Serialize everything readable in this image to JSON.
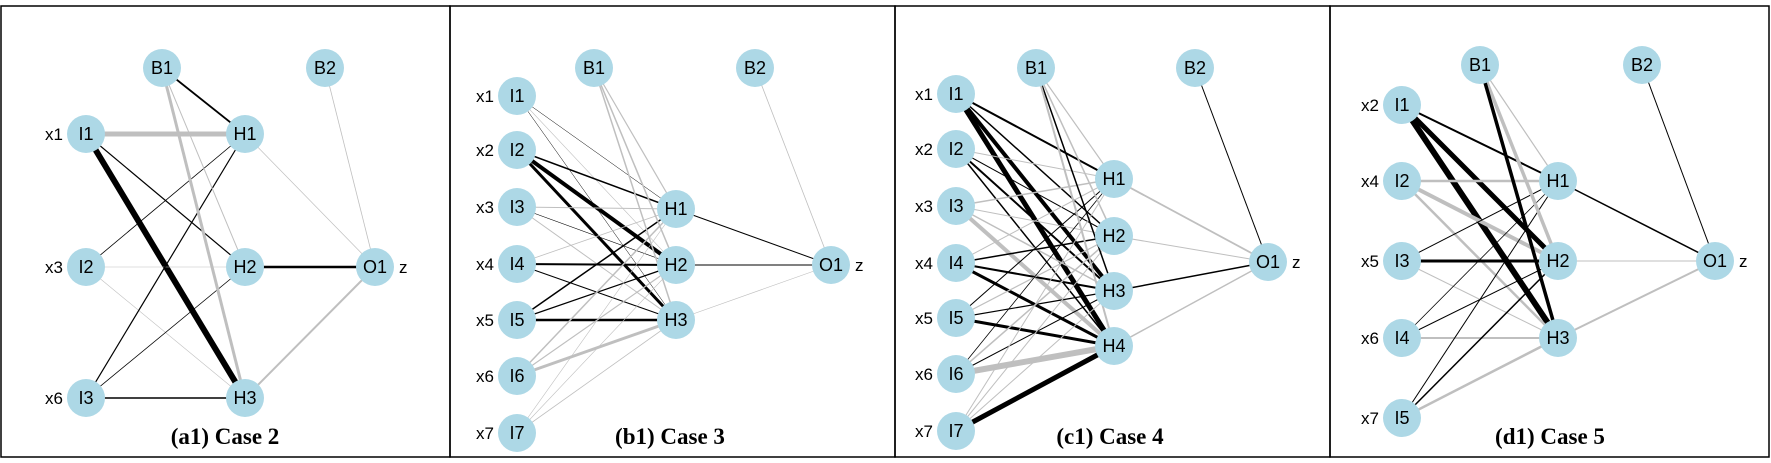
{
  "colors": {
    "node_fill": "#add8e6",
    "positive_weight": "#000000",
    "negative_weight": "#bfbfbf",
    "frame": "#000000"
  },
  "panels": [
    {
      "caption": "(a1) Case 2",
      "output_label": "z",
      "inputs": [
        {
          "id": "I1",
          "label": "x1"
        },
        {
          "id": "I2",
          "label": "x3"
        },
        {
          "id": "I3",
          "label": "x6"
        }
      ],
      "hidden": [
        "H1",
        "H2",
        "H3"
      ],
      "biases": [
        "B1",
        "B2"
      ],
      "output": "O1",
      "edges": [
        {
          "from": "I1",
          "to": "H1",
          "sign": "negative",
          "weight": 5
        },
        {
          "from": "I1",
          "to": "H2",
          "sign": "positive",
          "weight": 1.2
        },
        {
          "from": "I1",
          "to": "H3",
          "sign": "positive",
          "weight": 6
        },
        {
          "from": "I2",
          "to": "H1",
          "sign": "positive",
          "weight": 0.8
        },
        {
          "from": "I2",
          "to": "H2",
          "sign": "negative",
          "weight": 0.6
        },
        {
          "from": "I2",
          "to": "H3",
          "sign": "negative",
          "weight": 0.6
        },
        {
          "from": "I3",
          "to": "H1",
          "sign": "positive",
          "weight": 1.2
        },
        {
          "from": "I3",
          "to": "H2",
          "sign": "positive",
          "weight": 0.8
        },
        {
          "from": "I3",
          "to": "H3",
          "sign": "positive",
          "weight": 1.5
        },
        {
          "from": "B1",
          "to": "H1",
          "sign": "positive",
          "weight": 1.8
        },
        {
          "from": "B1",
          "to": "H2",
          "sign": "negative",
          "weight": 1
        },
        {
          "from": "B1",
          "to": "H3",
          "sign": "negative",
          "weight": 3
        },
        {
          "from": "H1",
          "to": "O1",
          "sign": "negative",
          "weight": 0.7
        },
        {
          "from": "H2",
          "to": "O1",
          "sign": "positive",
          "weight": 2.5
        },
        {
          "from": "H3",
          "to": "O1",
          "sign": "negative",
          "weight": 2
        },
        {
          "from": "B2",
          "to": "O1",
          "sign": "negative",
          "weight": 0.8
        }
      ]
    },
    {
      "caption": "(b1) Case 3",
      "output_label": "z",
      "inputs": [
        {
          "id": "I1",
          "label": "x1"
        },
        {
          "id": "I2",
          "label": "x2"
        },
        {
          "id": "I3",
          "label": "x3"
        },
        {
          "id": "I4",
          "label": "x4"
        },
        {
          "id": "I5",
          "label": "x5"
        },
        {
          "id": "I6",
          "label": "x6"
        },
        {
          "id": "I7",
          "label": "x7"
        }
      ],
      "hidden": [
        "H1",
        "H2",
        "H3"
      ],
      "biases": [
        "B1",
        "B2"
      ],
      "output": "O1",
      "edges": [
        {
          "from": "I1",
          "to": "H1",
          "sign": "positive",
          "weight": 0.5
        },
        {
          "from": "I1",
          "to": "H2",
          "sign": "negative",
          "weight": 0.6
        },
        {
          "from": "I1",
          "to": "H3",
          "sign": "positive",
          "weight": 0.5
        },
        {
          "from": "I2",
          "to": "H1",
          "sign": "positive",
          "weight": 1.5
        },
        {
          "from": "I2",
          "to": "H2",
          "sign": "positive",
          "weight": 4
        },
        {
          "from": "I2",
          "to": "H3",
          "sign": "positive",
          "weight": 3
        },
        {
          "from": "I3",
          "to": "H1",
          "sign": "negative",
          "weight": 1
        },
        {
          "from": "I3",
          "to": "H2",
          "sign": "positive",
          "weight": 0.6
        },
        {
          "from": "I3",
          "to": "H3",
          "sign": "negative",
          "weight": 1
        },
        {
          "from": "I4",
          "to": "H1",
          "sign": "negative",
          "weight": 0.8
        },
        {
          "from": "I4",
          "to": "H2",
          "sign": "positive",
          "weight": 2
        },
        {
          "from": "I4",
          "to": "H3",
          "sign": "positive",
          "weight": 1
        },
        {
          "from": "I5",
          "to": "H1",
          "sign": "positive",
          "weight": 1.5
        },
        {
          "from": "I5",
          "to": "H2",
          "sign": "positive",
          "weight": 1.2
        },
        {
          "from": "I5",
          "to": "H3",
          "sign": "positive",
          "weight": 2.5
        },
        {
          "from": "I6",
          "to": "H1",
          "sign": "negative",
          "weight": 1.5
        },
        {
          "from": "I6",
          "to": "H2",
          "sign": "negative",
          "weight": 1.2
        },
        {
          "from": "I6",
          "to": "H3",
          "sign": "negative",
          "weight": 3
        },
        {
          "from": "I7",
          "to": "H1",
          "sign": "negative",
          "weight": 0.6
        },
        {
          "from": "I7",
          "to": "H2",
          "sign": "negative",
          "weight": 0.6
        },
        {
          "from": "I7",
          "to": "H3",
          "sign": "negative",
          "weight": 0.8
        },
        {
          "from": "B1",
          "to": "H1",
          "sign": "negative",
          "weight": 1.2
        },
        {
          "from": "B1",
          "to": "H2",
          "sign": "negative",
          "weight": 1.5
        },
        {
          "from": "B1",
          "to": "H3",
          "sign": "negative",
          "weight": 1.5
        },
        {
          "from": "H1",
          "to": "O1",
          "sign": "positive",
          "weight": 1
        },
        {
          "from": "H2",
          "to": "O1",
          "sign": "positive",
          "weight": 1
        },
        {
          "from": "H3",
          "to": "O1",
          "sign": "negative",
          "weight": 0.6
        },
        {
          "from": "B2",
          "to": "O1",
          "sign": "negative",
          "weight": 0.8
        }
      ]
    },
    {
      "caption": "(c1) Case 4",
      "output_label": "z",
      "inputs": [
        {
          "id": "I1",
          "label": "x1"
        },
        {
          "id": "I2",
          "label": "x2"
        },
        {
          "id": "I3",
          "label": "x3"
        },
        {
          "id": "I4",
          "label": "x4"
        },
        {
          "id": "I5",
          "label": "x5"
        },
        {
          "id": "I6",
          "label": "x6"
        },
        {
          "id": "I7",
          "label": "x7"
        }
      ],
      "hidden": [
        "H1",
        "H2",
        "H3",
        "H4"
      ],
      "biases": [
        "B1",
        "B2"
      ],
      "output": "O1",
      "edges": [
        {
          "from": "I1",
          "to": "H1",
          "sign": "positive",
          "weight": 2
        },
        {
          "from": "I1",
          "to": "H2",
          "sign": "positive",
          "weight": 1.5
        },
        {
          "from": "I1",
          "to": "H3",
          "sign": "positive",
          "weight": 4
        },
        {
          "from": "I1",
          "to": "H4",
          "sign": "positive",
          "weight": 5
        },
        {
          "from": "I2",
          "to": "H1",
          "sign": "negative",
          "weight": 1
        },
        {
          "from": "I2",
          "to": "H2",
          "sign": "positive",
          "weight": 1
        },
        {
          "from": "I2",
          "to": "H3",
          "sign": "positive",
          "weight": 2
        },
        {
          "from": "I2",
          "to": "H4",
          "sign": "positive",
          "weight": 1.5
        },
        {
          "from": "I3",
          "to": "H1",
          "sign": "negative",
          "weight": 1.5
        },
        {
          "from": "I3",
          "to": "H2",
          "sign": "negative",
          "weight": 1
        },
        {
          "from": "I3",
          "to": "H3",
          "sign": "negative",
          "weight": 1.5
        },
        {
          "from": "I3",
          "to": "H4",
          "sign": "negative",
          "weight": 4
        },
        {
          "from": "I4",
          "to": "H1",
          "sign": "negative",
          "weight": 1
        },
        {
          "from": "I4",
          "to": "H2",
          "sign": "positive",
          "weight": 1.5
        },
        {
          "from": "I4",
          "to": "H3",
          "sign": "positive",
          "weight": 2
        },
        {
          "from": "I4",
          "to": "H4",
          "sign": "positive",
          "weight": 3
        },
        {
          "from": "I5",
          "to": "H1",
          "sign": "positive",
          "weight": 1
        },
        {
          "from": "I5",
          "to": "H2",
          "sign": "negative",
          "weight": 1.2
        },
        {
          "from": "I5",
          "to": "H3",
          "sign": "positive",
          "weight": 1.2
        },
        {
          "from": "I5",
          "to": "H4",
          "sign": "positive",
          "weight": 3
        },
        {
          "from": "I6",
          "to": "H1",
          "sign": "positive",
          "weight": 0.8
        },
        {
          "from": "I6",
          "to": "H2",
          "sign": "negative",
          "weight": 1.5
        },
        {
          "from": "I6",
          "to": "H3",
          "sign": "positive",
          "weight": 1
        },
        {
          "from": "I6",
          "to": "H4",
          "sign": "negative",
          "weight": 6
        },
        {
          "from": "I7",
          "to": "H1",
          "sign": "negative",
          "weight": 1
        },
        {
          "from": "I7",
          "to": "H2",
          "sign": "negative",
          "weight": 1
        },
        {
          "from": "I7",
          "to": "H3",
          "sign": "negative",
          "weight": 1
        },
        {
          "from": "I7",
          "to": "H4",
          "sign": "positive",
          "weight": 5
        },
        {
          "from": "B1",
          "to": "H1",
          "sign": "negative",
          "weight": 1.2
        },
        {
          "from": "B1",
          "to": "H2",
          "sign": "negative",
          "weight": 1.5
        },
        {
          "from": "B1",
          "to": "H3",
          "sign": "positive",
          "weight": 1.5
        },
        {
          "from": "B1",
          "to": "H4",
          "sign": "negative",
          "weight": 2
        },
        {
          "from": "H1",
          "to": "O1",
          "sign": "negative",
          "weight": 1.8
        },
        {
          "from": "H2",
          "to": "O1",
          "sign": "negative",
          "weight": 1
        },
        {
          "from": "H3",
          "to": "O1",
          "sign": "positive",
          "weight": 1.5
        },
        {
          "from": "H4",
          "to": "O1",
          "sign": "negative",
          "weight": 1.5
        },
        {
          "from": "B2",
          "to": "O1",
          "sign": "positive",
          "weight": 1
        }
      ]
    },
    {
      "caption": "(d1) Case 5",
      "output_label": "z",
      "inputs": [
        {
          "id": "I1",
          "label": "x2"
        },
        {
          "id": "I2",
          "label": "x4"
        },
        {
          "id": "I3",
          "label": "x5"
        },
        {
          "id": "I4",
          "label": "x6"
        },
        {
          "id": "I5",
          "label": "x7"
        }
      ],
      "hidden": [
        "H1",
        "H2",
        "H3"
      ],
      "biases": [
        "B1",
        "B2"
      ],
      "output": "O1",
      "edges": [
        {
          "from": "I1",
          "to": "H1",
          "sign": "positive",
          "weight": 2
        },
        {
          "from": "I1",
          "to": "H2",
          "sign": "positive",
          "weight": 5
        },
        {
          "from": "I1",
          "to": "H3",
          "sign": "positive",
          "weight": 6
        },
        {
          "from": "I2",
          "to": "H1",
          "sign": "negative",
          "weight": 2.5
        },
        {
          "from": "I2",
          "to": "H2",
          "sign": "negative",
          "weight": 4
        },
        {
          "from": "I2",
          "to": "H3",
          "sign": "negative",
          "weight": 2.5
        },
        {
          "from": "I3",
          "to": "H1",
          "sign": "positive",
          "weight": 1
        },
        {
          "from": "I3",
          "to": "H2",
          "sign": "positive",
          "weight": 3
        },
        {
          "from": "I3",
          "to": "H3",
          "sign": "negative",
          "weight": 1
        },
        {
          "from": "I4",
          "to": "H1",
          "sign": "positive",
          "weight": 0.8
        },
        {
          "from": "I4",
          "to": "H2",
          "sign": "positive",
          "weight": 1
        },
        {
          "from": "I4",
          "to": "H3",
          "sign": "negative",
          "weight": 2
        },
        {
          "from": "I5",
          "to": "H1",
          "sign": "positive",
          "weight": 1
        },
        {
          "from": "I5",
          "to": "H2",
          "sign": "positive",
          "weight": 1.5
        },
        {
          "from": "I5",
          "to": "H3",
          "sign": "negative",
          "weight": 2.5
        },
        {
          "from": "B1",
          "to": "H1",
          "sign": "negative",
          "weight": 1.2
        },
        {
          "from": "B1",
          "to": "H2",
          "sign": "negative",
          "weight": 3.5
        },
        {
          "from": "B1",
          "to": "H3",
          "sign": "positive",
          "weight": 3.5
        },
        {
          "from": "H1",
          "to": "O1",
          "sign": "positive",
          "weight": 1.5
        },
        {
          "from": "H2",
          "to": "O1",
          "sign": "negative",
          "weight": 1
        },
        {
          "from": "H3",
          "to": "O1",
          "sign": "negative",
          "weight": 2
        },
        {
          "from": "B2",
          "to": "O1",
          "sign": "positive",
          "weight": 1
        }
      ]
    }
  ]
}
